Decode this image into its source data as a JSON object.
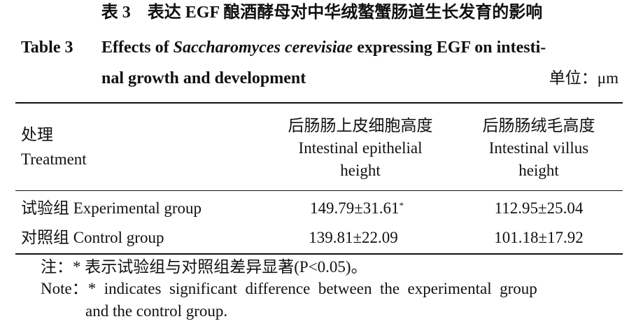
{
  "caption": {
    "title_cn": "表 3　表达 EGF 酿酒酵母对中华绒螯蟹肠道生长发育的影响",
    "label_en": "Table 3",
    "title_en": [
      "Effects of ",
      "Saccharomyces cerevisiae",
      " expressing EGF on intesti-",
      "nal growth and development"
    ],
    "unit": "单位：μm"
  },
  "table": {
    "header": [
      [
        "处理",
        "Treatment"
      ],
      [
        "后肠肠上皮细胞高度",
        "Intestinal epithelial",
        "height"
      ],
      [
        "后肠肠绒毛高度",
        "Intestinal villus",
        "height"
      ]
    ],
    "rows": [
      [
        "试验组 Experimental group",
        "149.79±31.61",
        "*",
        "112.95±25.04"
      ],
      [
        "对照组 Control group",
        "139.81±22.09",
        null,
        "101.18±17.92"
      ]
    ]
  },
  "notes": [
    "注：* 表示试验组与对照组差异显著(P<0.05)。",
    "Note：*  indicates  significant  difference  between  the  experimental  group",
    "and the control group."
  ]
}
